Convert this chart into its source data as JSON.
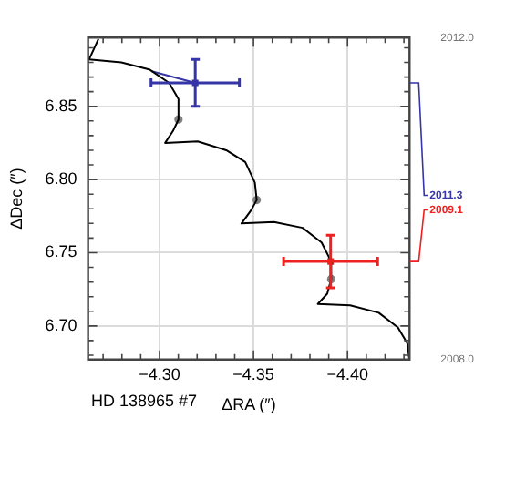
{
  "chart_data": {
    "type": "scatter",
    "xlabel": "ΔRA (″)",
    "ylabel": "ΔDec (″)",
    "xlim": [
      -4.262,
      -4.433
    ],
    "ylim": [
      6.677,
      6.897
    ],
    "xticks": [
      {
        "value": -4.27,
        "label": null
      },
      {
        "value": -4.28,
        "label": null
      },
      {
        "value": -4.29,
        "label": null
      },
      {
        "value": -4.3,
        "label": "−4.30"
      },
      {
        "value": -4.31,
        "label": null
      },
      {
        "value": -4.32,
        "label": null
      },
      {
        "value": -4.33,
        "label": null
      },
      {
        "value": -4.34,
        "label": null
      },
      {
        "value": -4.35,
        "label": "−4.35"
      },
      {
        "value": -4.36,
        "label": null
      },
      {
        "value": -4.37,
        "label": null
      },
      {
        "value": -4.38,
        "label": null
      },
      {
        "value": -4.39,
        "label": null
      },
      {
        "value": -4.4,
        "label": "−4.40"
      },
      {
        "value": -4.41,
        "label": null
      },
      {
        "value": -4.42,
        "label": null
      },
      {
        "value": -4.43,
        "label": null
      }
    ],
    "yticks": [
      {
        "value": 6.68,
        "label": null
      },
      {
        "value": 6.69,
        "label": null
      },
      {
        "value": 6.7,
        "label": "6.70"
      },
      {
        "value": 6.71,
        "label": null
      },
      {
        "value": 6.72,
        "label": null
      },
      {
        "value": 6.73,
        "label": null
      },
      {
        "value": 6.74,
        "label": null
      },
      {
        "value": 6.75,
        "label": "6.75"
      },
      {
        "value": 6.76,
        "label": null
      },
      {
        "value": 6.77,
        "label": null
      },
      {
        "value": 6.78,
        "label": null
      },
      {
        "value": 6.79,
        "label": null
      },
      {
        "value": 6.8,
        "label": "6.80"
      },
      {
        "value": 6.81,
        "label": null
      },
      {
        "value": 6.82,
        "label": null
      },
      {
        "value": 6.83,
        "label": null
      },
      {
        "value": 6.84,
        "label": null
      },
      {
        "value": 6.85,
        "label": "6.85"
      },
      {
        "value": 6.86,
        "label": null
      },
      {
        "value": 6.87,
        "label": null
      },
      {
        "value": 6.88,
        "label": null
      },
      {
        "value": 6.89,
        "label": null
      }
    ],
    "y2lim": [
      2008,
      2012
    ],
    "y2ticks": [
      {
        "value": 2008,
        "label": "2008.0"
      },
      {
        "value": 2012,
        "label": "2012.0"
      }
    ],
    "grid": true,
    "legend": false,
    "series": [
      {
        "type": "line",
        "color": "#000000",
        "marker": "none",
        "x": [
          -4.2675,
          -4.2625,
          -4.2797,
          -4.2949,
          -4.3051,
          -4.3101,
          -4.3101,
          -4.3071,
          -4.303,
          -4.3203,
          -4.3355,
          -4.3456,
          -4.3507,
          -4.3517,
          -4.3487,
          -4.3436,
          -4.3609,
          -4.3761,
          -4.3862,
          -4.3913,
          -4.3913,
          -4.3892,
          -4.3842,
          -4.4014,
          -4.4166,
          -4.4268,
          -4.4318,
          -4.4329
        ],
        "values": [
          6.896,
          6.882,
          6.88,
          6.875,
          6.866,
          6.855,
          6.841,
          6.833,
          6.825,
          6.826,
          6.82,
          6.812,
          6.798,
          6.786,
          6.779,
          6.77,
          6.771,
          6.767,
          6.757,
          6.744,
          6.732,
          6.722,
          6.715,
          6.714,
          6.709,
          6.699,
          6.688,
          6.677
        ]
      },
      {
        "type": "scatter",
        "color": "#3535a8",
        "marker": "square",
        "x": [
          -4.319
        ],
        "values": [
          6.866
        ],
        "errors": [
          0.016
        ],
        "xerrors": [
          0.0235
        ]
      },
      {
        "type": "scatter",
        "color": "#ee2020",
        "marker": "square",
        "x": [
          -4.391
        ],
        "values": [
          6.744
        ],
        "errors": [
          0.018
        ],
        "xerrors": [
          0.025
        ]
      },
      {
        "type": "scatter",
        "color": "#808080",
        "marker": "circle",
        "x": [
          -4.3101,
          -4.3517,
          -4.3913
        ],
        "values": [
          6.841,
          6.786,
          6.732
        ]
      },
      {
        "type": "line",
        "color": "#3535a8",
        "marker": "none",
        "x": [
          -4.2959,
          -4.319
        ],
        "values": [
          6.874,
          6.866
        ]
      }
    ],
    "annotations": [
      "HD 138965 #7",
      "2011.3",
      "2009.1"
    ]
  }
}
